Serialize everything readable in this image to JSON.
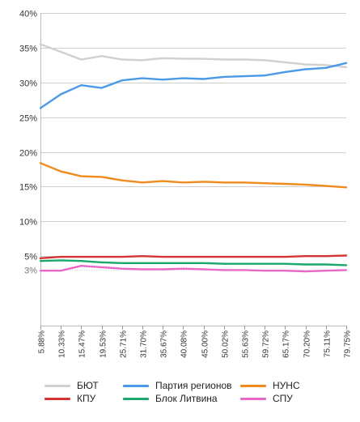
{
  "chart_data": {
    "type": "line",
    "x": [
      "5.88%",
      "10.33%",
      "15.47%",
      "19.53%",
      "25.71%",
      "31.70%",
      "35.67%",
      "40.08%",
      "45.00%",
      "50.02%",
      "55.63%",
      "59.72%",
      "65.17%",
      "70.20%",
      "75.11%",
      "79.75%"
    ],
    "ylim": [
      -5,
      40
    ],
    "yticks": [
      {
        "value": 40,
        "label": "40%"
      },
      {
        "value": 35,
        "label": "35%"
      },
      {
        "value": 30,
        "label": "30%"
      },
      {
        "value": 25,
        "label": "25%"
      },
      {
        "value": 20,
        "label": "20%"
      },
      {
        "value": 15,
        "label": "15%"
      },
      {
        "value": 10,
        "label": "10%"
      },
      {
        "value": 5,
        "label": "5%"
      },
      {
        "value": 3,
        "label": "3%",
        "style": "dotted"
      }
    ],
    "grid": true,
    "legend_position": "bottom",
    "series": [
      {
        "name": "БЮТ",
        "color": "#d0d0d0",
        "values": [
          35.5,
          34.4,
          33.3,
          33.8,
          33.3,
          33.2,
          33.5,
          33.4,
          33.4,
          33.3,
          33.3,
          33.2,
          32.9,
          32.6,
          32.5,
          32.2
        ]
      },
      {
        "name": "Партия регионов",
        "color": "#4a9ae8",
        "values": [
          26.3,
          28.3,
          29.6,
          29.2,
          30.3,
          30.6,
          30.4,
          30.6,
          30.5,
          30.8,
          30.9,
          31.0,
          31.5,
          31.9,
          32.1,
          32.8
        ]
      },
      {
        "name": "НУНС",
        "color": "#f08a1c",
        "values": [
          18.4,
          17.2,
          16.5,
          16.4,
          15.9,
          15.6,
          15.8,
          15.6,
          15.7,
          15.6,
          15.6,
          15.5,
          15.4,
          15.3,
          15.1,
          14.9
        ]
      },
      {
        "name": "КПУ",
        "color": "#d83333",
        "values": [
          4.7,
          4.9,
          4.9,
          4.9,
          4.9,
          5.0,
          4.9,
          4.9,
          4.9,
          4.9,
          4.9,
          4.9,
          4.9,
          5.0,
          5.0,
          5.1
        ]
      },
      {
        "name": "Блок Литвина",
        "color": "#1aa86c",
        "values": [
          4.3,
          4.4,
          4.3,
          4.1,
          4.0,
          4.0,
          4.0,
          4.0,
          4.0,
          3.9,
          3.9,
          3.9,
          3.9,
          3.8,
          3.8,
          3.7
        ]
      },
      {
        "name": "СПУ",
        "color": "#e868c8",
        "values": [
          2.9,
          2.9,
          3.6,
          3.4,
          3.2,
          3.1,
          3.1,
          3.2,
          3.1,
          3.0,
          3.0,
          2.9,
          2.9,
          2.8,
          2.9,
          3.0
        ]
      }
    ]
  }
}
